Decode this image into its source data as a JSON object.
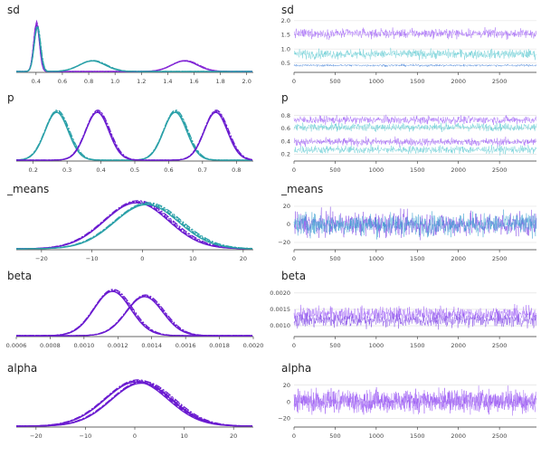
{
  "chart_data": [
    {
      "type": "line",
      "title": "sd",
      "xlim": [
        0.25,
        2.05
      ],
      "xticks": [
        "0.4",
        "0.6",
        "0.8",
        "1.0",
        "1.2",
        "1.4",
        "1.6",
        "1.8",
        "2.0"
      ],
      "series": [
        {
          "color": "#6a1bd0",
          "peaks": [
            {
              "mu": 0.405,
              "sigma": 0.022,
              "amp": 1.0
            },
            {
              "mu": 1.53,
              "sigma": 0.1,
              "amp": 0.22
            }
          ]
        },
        {
          "color": "#2aa0a8",
          "peaks": [
            {
              "mu": 0.41,
              "sigma": 0.024,
              "amp": 0.92
            },
            {
              "mu": 0.83,
              "sigma": 0.1,
              "amp": 0.22
            }
          ]
        }
      ]
    },
    {
      "type": "line",
      "title": "sd",
      "xlim": [
        0,
        2950
      ],
      "ylim": [
        0.3,
        1.9
      ],
      "xticks": [
        "0",
        "500",
        "1000",
        "1500",
        "2000",
        "2500"
      ],
      "yticks": [
        "0.5",
        "1.0",
        "1.5",
        "2.0"
      ],
      "bands": [
        {
          "center": 1.55,
          "spread": 0.08,
          "color": "#9b59f5"
        },
        {
          "center": 0.82,
          "spread": 0.08,
          "color": "#5bc8d0"
        },
        {
          "center": 0.42,
          "spread": 0.02,
          "color": "#3a7bd5"
        }
      ]
    },
    {
      "type": "line",
      "title": "p",
      "xlim": [
        0.15,
        0.85
      ],
      "xticks": [
        "0.2",
        "0.3",
        "0.4",
        "0.5",
        "0.6",
        "0.7",
        "0.8"
      ],
      "series": [
        {
          "color": "#2aa0a8",
          "peaks": [
            {
              "mu": 0.27,
              "sigma": 0.035,
              "amp": 1.0
            },
            {
              "mu": 0.62,
              "sigma": 0.035,
              "amp": 1.0
            }
          ]
        },
        {
          "color": "#6a1bd0",
          "peaks": [
            {
              "mu": 0.39,
              "sigma": 0.035,
              "amp": 1.0
            },
            {
              "mu": 0.74,
              "sigma": 0.035,
              "amp": 1.0
            }
          ]
        }
      ]
    },
    {
      "type": "line",
      "title": "p",
      "xlim": [
        0,
        2950
      ],
      "ylim": [
        0.15,
        0.85
      ],
      "xticks": [
        "0",
        "500",
        "1000",
        "1500",
        "2000",
        "2500"
      ],
      "yticks": [
        "0.2",
        "0.4",
        "0.6",
        "0.8"
      ],
      "bands": [
        {
          "center": 0.73,
          "spread": 0.03,
          "color": "#9b59f5"
        },
        {
          "center": 0.62,
          "spread": 0.03,
          "color": "#5bc8d0"
        },
        {
          "center": 0.39,
          "spread": 0.03,
          "color": "#9b59f5"
        },
        {
          "center": 0.27,
          "spread": 0.03,
          "color": "#5bc8d0"
        }
      ]
    },
    {
      "type": "line",
      "title": "_means",
      "xlim": [
        -25,
        22
      ],
      "xticks": [
        "−20",
        "−10",
        "0",
        "10",
        "20"
      ],
      "series": [
        {
          "color": "#6a1bd0",
          "peaks": [
            {
              "mu": -1.0,
              "sigma": 6.5,
              "amp": 1.0
            }
          ]
        },
        {
          "color": "#2aa0a8",
          "peaks": [
            {
              "mu": 1.0,
              "sigma": 6.5,
              "amp": 0.96
            }
          ]
        }
      ]
    },
    {
      "type": "line",
      "title": "_means",
      "xlim": [
        0,
        2950
      ],
      "ylim": [
        -24,
        24
      ],
      "xticks": [
        "0",
        "500",
        "1000",
        "1500",
        "2000",
        "2500"
      ],
      "yticks": [
        "−20",
        "0",
        "20"
      ],
      "bands": [
        {
          "center": 0,
          "spread": 6.5,
          "color": "#7b3fe4"
        },
        {
          "center": 0,
          "spread": 6.0,
          "color": "#3a9fd0"
        }
      ]
    },
    {
      "type": "line",
      "title": "beta",
      "xlim": [
        0.0006,
        0.002
      ],
      "xticks": [
        "0.0006",
        "0.0008",
        "0.0010",
        "0.0012",
        "0.0014",
        "0.0016",
        "0.0018",
        "0.0020"
      ],
      "series": [
        {
          "color": "#6a1bd0",
          "peaks": [
            {
              "mu": 0.00117,
              "sigma": 0.00011,
              "amp": 1.0
            }
          ]
        },
        {
          "color": "#6a1bd0",
          "peaks": [
            {
              "mu": 0.00136,
              "sigma": 0.00011,
              "amp": 0.88
            }
          ]
        }
      ]
    },
    {
      "type": "line",
      "title": "beta",
      "xlim": [
        0,
        2950
      ],
      "ylim": [
        0.00078,
        0.00205
      ],
      "xticks": [
        "0",
        "500",
        "1000",
        "1500",
        "2000",
        "2500"
      ],
      "yticks": [
        "0.0010",
        "0.0015",
        "0.0020"
      ],
      "bands": [
        {
          "center": 0.00136,
          "spread": 0.00011,
          "color": "#9b59f5"
        },
        {
          "center": 0.00117,
          "spread": 0.00011,
          "color": "#7b3fe4"
        }
      ]
    },
    {
      "type": "line",
      "title": "alpha",
      "xlim": [
        -24,
        24
      ],
      "xticks": [
        "−20",
        "−10",
        "0",
        "10",
        "20"
      ],
      "series": [
        {
          "color": "#6a1bd0",
          "peaks": [
            {
              "mu": 0.5,
              "sigma": 6.5,
              "amp": 1.0
            }
          ]
        },
        {
          "color": "#6a1bd0",
          "peaks": [
            {
              "mu": 1.5,
              "sigma": 6.3,
              "amp": 0.97
            }
          ]
        }
      ]
    },
    {
      "type": "line",
      "title": "alpha",
      "xlim": [
        0,
        2950
      ],
      "ylim": [
        -26,
        24
      ],
      "xticks": [
        "0",
        "500",
        "1000",
        "1500",
        "2000",
        "2500"
      ],
      "yticks": [
        "−20",
        "0",
        "20"
      ],
      "bands": [
        {
          "center": 1,
          "spread": 6.5,
          "color": "#8a3cf0"
        },
        {
          "center": 1,
          "spread": 6.5,
          "color": "#a56cf5"
        }
      ]
    }
  ]
}
